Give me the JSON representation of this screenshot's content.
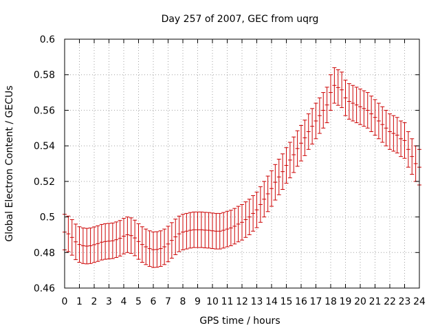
{
  "chart_data": {
    "type": "line",
    "title": "Day 257 of 2007, GEC from uqrg",
    "xlabel": "GPS time / hours",
    "ylabel": "Global Electron Content / GECUs",
    "xlim": [
      0,
      24
    ],
    "ylim": [
      0.46,
      0.6
    ],
    "grid": true,
    "error_bars": true,
    "color": "#cc0000",
    "x_ticks": [
      "0",
      "1",
      "2",
      "3",
      "4",
      "5",
      "6",
      "7",
      "8",
      "9",
      "10",
      "11",
      "12",
      "13",
      "14",
      "15",
      "16",
      "17",
      "18",
      "19",
      "20",
      "21",
      "22",
      "23",
      "24"
    ],
    "y_ticks": [
      "0.46",
      "0.48",
      "0.5",
      "0.52",
      "0.54",
      "0.56",
      "0.58",
      "0.6"
    ],
    "series": [
      {
        "x": [
          0.0,
          0.25,
          0.5,
          0.75,
          1.0,
          1.25,
          1.5,
          1.75,
          2.0,
          2.25,
          2.5,
          2.75,
          3.0,
          3.25,
          3.5,
          3.75,
          4.0,
          4.25,
          4.5,
          4.75,
          5.0,
          5.25,
          5.5,
          5.75,
          6.0,
          6.25,
          6.5,
          6.75,
          7.0,
          7.25,
          7.5,
          7.75,
          8.0,
          8.25,
          8.5,
          8.75,
          9.0,
          9.25,
          9.5,
          9.75,
          10.0,
          10.25,
          10.5,
          10.75,
          11.0,
          11.25,
          11.5,
          11.75,
          12.0,
          12.25,
          12.5,
          12.75,
          13.0,
          13.25,
          13.5,
          13.75,
          14.0,
          14.25,
          14.5,
          14.75,
          15.0,
          15.25,
          15.5,
          15.75,
          16.0,
          16.25,
          16.5,
          16.75,
          17.0,
          17.25,
          17.5,
          17.75,
          18.0,
          18.25,
          18.5,
          18.75,
          19.0,
          19.25,
          19.5,
          19.75,
          20.0,
          20.25,
          20.5,
          20.75,
          21.0,
          21.25,
          21.5,
          21.75,
          22.0,
          22.25,
          22.5,
          22.75,
          23.0,
          23.25,
          23.5,
          23.75,
          24.0
        ],
        "y": [
          0.4915,
          0.4905,
          0.4885,
          0.486,
          0.4845,
          0.4838,
          0.4836,
          0.4838,
          0.4844,
          0.485,
          0.4858,
          0.4862,
          0.4864,
          0.4866,
          0.4872,
          0.488,
          0.4892,
          0.49,
          0.4895,
          0.4882,
          0.4862,
          0.4845,
          0.4832,
          0.4822,
          0.4816,
          0.4817,
          0.4822,
          0.4832,
          0.4848,
          0.4868,
          0.4888,
          0.4905,
          0.4915,
          0.492,
          0.4925,
          0.4928,
          0.4928,
          0.4928,
          0.4926,
          0.4925,
          0.4922,
          0.492,
          0.492,
          0.4925,
          0.4932,
          0.4938,
          0.4948,
          0.496,
          0.497,
          0.4985,
          0.5,
          0.502,
          0.504,
          0.507,
          0.51,
          0.513,
          0.516,
          0.5195,
          0.5225,
          0.5255,
          0.529,
          0.532,
          0.535,
          0.5385,
          0.5415,
          0.5445,
          0.548,
          0.551,
          0.554,
          0.557,
          0.56,
          0.563,
          0.57,
          0.574,
          0.5728,
          0.5715,
          0.567,
          0.565,
          0.564,
          0.563,
          0.562,
          0.561,
          0.56,
          0.558,
          0.556,
          0.554,
          0.552,
          0.55,
          0.548,
          0.547,
          0.546,
          0.544,
          0.543,
          0.538,
          0.534,
          0.53,
          0.528
        ],
        "err": 0.01
      }
    ]
  }
}
